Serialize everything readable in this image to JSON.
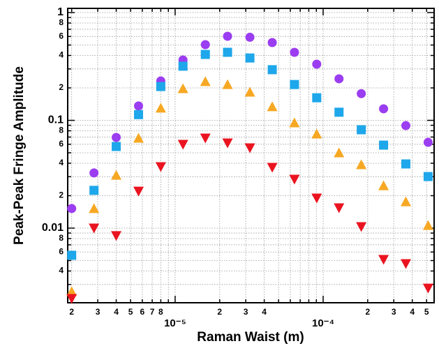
{
  "chart_data": {
    "type": "scatter",
    "xlabel": "Raman Waist (m)",
    "ylabel": "Peak-Peak Fringe Amplitude",
    "xscale": "log",
    "yscale": "log",
    "grid": true,
    "xlim": [
      1.88e-06,
      0.000562
    ],
    "ylim": [
      0.00203,
      1.094
    ],
    "xticks": [
      {
        "value": 2e-06,
        "label": "2"
      },
      {
        "value": 3e-06,
        "label": "3"
      },
      {
        "value": 4e-06,
        "label": "4"
      },
      {
        "value": 5e-06,
        "label": "5"
      },
      {
        "value": 6e-06,
        "label": "6"
      },
      {
        "value": 7e-06,
        "label": "7"
      },
      {
        "value": 8e-06,
        "label": "8"
      },
      {
        "value": 1e-05,
        "label": "10⁻⁵"
      },
      {
        "value": 2e-05,
        "label": "2"
      },
      {
        "value": 3e-05,
        "label": "3"
      },
      {
        "value": 4e-05,
        "label": "4"
      },
      {
        "value": 0.0001,
        "label": "10⁻⁴"
      },
      {
        "value": 0.0002,
        "label": "2"
      },
      {
        "value": 0.0003,
        "label": "3"
      },
      {
        "value": 0.0004,
        "label": "4"
      },
      {
        "value": 0.0005,
        "label": "5"
      }
    ],
    "xminorticks": [
      9e-06,
      5e-05,
      6e-05,
      7e-05,
      8e-05,
      9e-05
    ],
    "yticks": [
      {
        "value": 0.004,
        "label": "4"
      },
      {
        "value": 0.006,
        "label": "6"
      },
      {
        "value": 0.008,
        "label": "8"
      },
      0.01,
      {
        "value": 0.02,
        "label": "2"
      },
      {
        "value": 0.04,
        "label": "4"
      },
      {
        "value": 0.06,
        "label": "6"
      },
      {
        "value": 0.08,
        "label": "8"
      },
      0.1,
      {
        "value": 0.2,
        "label": "2"
      },
      {
        "value": 0.4,
        "label": "4"
      },
      {
        "value": 0.6,
        "label": "6"
      },
      {
        "value": 0.8,
        "label": "8"
      },
      1
    ],
    "yminorticks": [
      0.003,
      0.005,
      0.007,
      0.009,
      0.03,
      0.05,
      0.07,
      0.09,
      0.3,
      0.5,
      0.7,
      0.9
    ],
    "x": [
      2e-06,
      2.83e-06,
      4e-06,
      5.66e-06,
      8e-06,
      1.13e-05,
      1.6e-05,
      2.26e-05,
      3.2e-05,
      4.53e-05,
      6.4e-05,
      9.05e-05,
      0.000128,
      0.000181,
      0.000256,
      0.000362,
      0.000512
    ],
    "series": [
      {
        "marker": "circle",
        "color": "#9b3df0",
        "values": [
          0.0152,
          0.0325,
          0.0694,
          0.136,
          0.232,
          0.363,
          0.504,
          0.603,
          0.59,
          0.527,
          0.428,
          0.332,
          0.243,
          0.177,
          0.128,
          0.0894,
          0.0625
        ]
      },
      {
        "marker": "square",
        "color": "#1ea7ea",
        "values": [
          0.0056,
          0.0224,
          0.0572,
          0.113,
          0.206,
          0.318,
          0.409,
          0.428,
          0.379,
          0.295,
          0.215,
          0.162,
          0.119,
          0.0818,
          0.0589,
          0.0394,
          0.0301
        ]
      },
      {
        "marker": "triangle-up",
        "color": "#f7a823",
        "values": [
          0.00258,
          0.0152,
          0.031,
          0.0684,
          0.13,
          0.197,
          0.229,
          0.215,
          0.183,
          0.134,
          0.0949,
          0.0748,
          0.05,
          0.0388,
          0.0248,
          0.0176,
          0.0106
        ]
      },
      {
        "marker": "triangle-down",
        "color": "#ea1420",
        "values": [
          0.00222,
          0.01,
          0.0085,
          0.022,
          0.0371,
          0.0598,
          0.0684,
          0.0616,
          0.0555,
          0.0366,
          0.0284,
          0.019,
          0.0154,
          0.0103,
          0.00511,
          0.00468,
          0.00277
        ]
      }
    ]
  }
}
